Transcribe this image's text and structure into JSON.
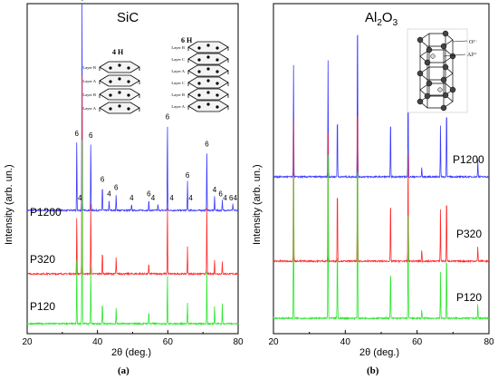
{
  "colors": {
    "P1200": "#3b3bff",
    "P320": "#ff2a2a",
    "P120": "#2ee62e",
    "axis": "#000000"
  },
  "chart_data": [
    {
      "type": "line",
      "panel_tag": "(a)",
      "title": "SiC",
      "xlabel": "2θ (deg.)",
      "ylabel": "Intensity (arb. un.)",
      "xlim": [
        20,
        80
      ],
      "xticks": [
        20,
        40,
        60,
        80
      ],
      "series": [
        {
          "name": "P1200",
          "color_key": "P1200",
          "peaks": [
            [
              34.1,
              0.34
            ],
            [
              35.6,
              0.99
            ],
            [
              38.1,
              0.33
            ],
            [
              41.4,
              0.12
            ],
            [
              43.3,
              0.05
            ],
            [
              45.3,
              0.08
            ],
            [
              49.7,
              0.03
            ],
            [
              54.6,
              0.05
            ],
            [
              57.2,
              0.03
            ],
            [
              59.9,
              0.42
            ],
            [
              65.6,
              0.14
            ],
            [
              71.1,
              0.29
            ],
            [
              73.3,
              0.07
            ],
            [
              75.5,
              0.05
            ],
            [
              78.5,
              0.03
            ]
          ]
        },
        {
          "name": "P320",
          "color_key": "P320",
          "peaks": [
            [
              34.1,
              0.28
            ],
            [
              35.6,
              0.95
            ],
            [
              38.1,
              0.35
            ],
            [
              41.4,
              0.11
            ],
            [
              45.3,
              0.08
            ],
            [
              54.6,
              0.05
            ],
            [
              59.9,
              0.33
            ],
            [
              65.6,
              0.13
            ],
            [
              71.1,
              0.33
            ],
            [
              73.3,
              0.07
            ],
            [
              75.5,
              0.06
            ]
          ]
        },
        {
          "name": "P120",
          "color_key": "P120",
          "peaks": [
            [
              34.1,
              0.32
            ],
            [
              35.6,
              0.88
            ],
            [
              38.1,
              0.28
            ],
            [
              41.4,
              0.1
            ],
            [
              45.3,
              0.08
            ],
            [
              54.6,
              0.06
            ],
            [
              59.9,
              0.24
            ],
            [
              65.6,
              0.1
            ],
            [
              71.1,
              0.26
            ],
            [
              73.3,
              0.09
            ],
            [
              75.5,
              0.1
            ]
          ]
        }
      ],
      "annotations": [
        {
          "text": "6",
          "x": 35.6
        },
        {
          "text": "6",
          "x": 34.1
        },
        {
          "text": "4",
          "x": 35.0
        },
        {
          "text": "6",
          "x": 38.1
        },
        {
          "text": "6",
          "x": 41.4
        },
        {
          "text": "6",
          "x": 45.3
        },
        {
          "text": "4",
          "x": 43.3
        },
        {
          "text": "4",
          "x": 49.7
        },
        {
          "text": "6",
          "x": 54.6
        },
        {
          "text": "4",
          "x": 55.8
        },
        {
          "text": "6",
          "x": 59.9
        },
        {
          "text": "4",
          "x": 61.1
        },
        {
          "text": "6",
          "x": 65.6
        },
        {
          "text": "4",
          "x": 66.5
        },
        {
          "text": "6",
          "x": 71.1
        },
        {
          "text": "4",
          "x": 73.3
        },
        {
          "text": "6",
          "x": 75.0
        },
        {
          "text": "4",
          "x": 76.3
        },
        {
          "text": "6",
          "x": 78.0
        },
        {
          "text": "4",
          "x": 79.2
        }
      ],
      "inset": {
        "labels_4h": "4 H",
        "labels_6h": "6 H",
        "layers_4h": [
          "Layer B",
          "Layer A",
          "Layer B",
          "Layer A"
        ],
        "layers_6h": [
          "Layer B",
          "Layer C",
          "Layer A",
          "Layer C",
          "Layer B",
          "Layer A"
        ]
      }
    },
    {
      "type": "line",
      "panel_tag": "(b)",
      "title": "Al2O3",
      "xlabel": "2θ (deg.)",
      "ylabel": "Intensity (arb. un.)",
      "xlim": [
        20,
        80
      ],
      "xticks": [
        20,
        40,
        60,
        80
      ],
      "series": [
        {
          "name": "P1200",
          "color_key": "P1200",
          "peaks": [
            [
              25.6,
              0.62
            ],
            [
              35.2,
              0.64
            ],
            [
              37.8,
              0.35
            ],
            [
              43.4,
              0.95
            ],
            [
              52.6,
              0.33
            ],
            [
              57.5,
              0.6
            ],
            [
              61.3,
              0.05
            ],
            [
              66.5,
              0.3
            ],
            [
              68.2,
              0.4
            ],
            [
              76.9,
              0.1
            ]
          ]
        },
        {
          "name": "P320",
          "color_key": "P320",
          "peaks": [
            [
              25.6,
              0.78
            ],
            [
              35.2,
              0.7
            ],
            [
              37.8,
              0.42
            ],
            [
              43.4,
              0.97
            ],
            [
              52.6,
              0.35
            ],
            [
              57.5,
              0.62
            ],
            [
              61.3,
              0.06
            ],
            [
              66.5,
              0.3
            ],
            [
              68.2,
              0.37
            ],
            [
              76.9,
              0.08
            ]
          ]
        },
        {
          "name": "P120",
          "color_key": "P120",
          "peaks": [
            [
              25.6,
              0.78
            ],
            [
              35.2,
              0.9
            ],
            [
              37.8,
              0.4
            ],
            [
              43.4,
              0.98
            ],
            [
              52.6,
              0.28
            ],
            [
              57.5,
              0.6
            ],
            [
              61.3,
              0.05
            ],
            [
              66.5,
              0.27
            ],
            [
              68.2,
              0.37
            ],
            [
              76.9,
              0.08
            ]
          ]
        }
      ],
      "inset": {
        "labels_o": "O²⁻",
        "labels_al": "Al³⁺"
      }
    }
  ]
}
